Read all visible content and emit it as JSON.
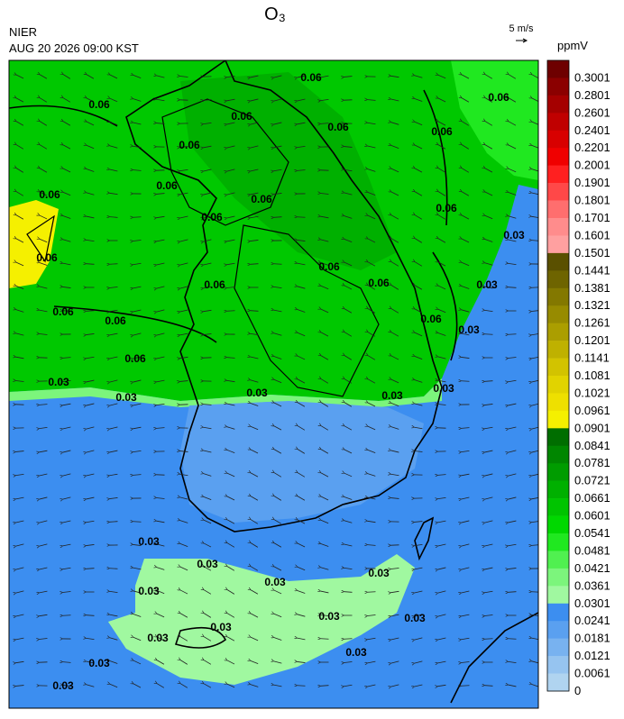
{
  "header": {
    "title": "O₃",
    "organization": "NIER",
    "datetime": "AUG 20 2026 09:00 KST",
    "wind_scale": "5 m/s",
    "unit": "ppmV"
  },
  "legend": [
    {
      "label": "0.3001",
      "color": "#6e0000"
    },
    {
      "label": "0.2801",
      "color": "#8b0000"
    },
    {
      "label": "0.2601",
      "color": "#a50000"
    },
    {
      "label": "0.2401",
      "color": "#c00000"
    },
    {
      "label": "0.2201",
      "color": "#d80000"
    },
    {
      "label": "0.2001",
      "color": "#f00000"
    },
    {
      "label": "0.1901",
      "color": "#ff2020"
    },
    {
      "label": "0.1801",
      "color": "#ff4848"
    },
    {
      "label": "0.1701",
      "color": "#ff6e6e"
    },
    {
      "label": "0.1601",
      "color": "#ff8c8c"
    },
    {
      "label": "0.1501",
      "color": "#ffa0a0"
    },
    {
      "label": "0.1441",
      "color": "#5a5000"
    },
    {
      "label": "0.1381",
      "color": "#6e6400"
    },
    {
      "label": "0.1321",
      "color": "#837800"
    },
    {
      "label": "0.1261",
      "color": "#978b00"
    },
    {
      "label": "0.1201",
      "color": "#ab9e00"
    },
    {
      "label": "0.1141",
      "color": "#bfb100"
    },
    {
      "label": "0.1081",
      "color": "#d2c300"
    },
    {
      "label": "0.1021",
      "color": "#e1d300"
    },
    {
      "label": "0.0961",
      "color": "#eee000"
    },
    {
      "label": "0.0901",
      "color": "#f5f000"
    },
    {
      "label": "0.0841",
      "color": "#006e00"
    },
    {
      "label": "0.0781",
      "color": "#008600"
    },
    {
      "label": "0.0721",
      "color": "#009c00"
    },
    {
      "label": "0.0661",
      "color": "#00b000"
    },
    {
      "label": "0.0601",
      "color": "#00c400"
    },
    {
      "label": "0.0541",
      "color": "#00d800"
    },
    {
      "label": "0.0481",
      "color": "#20e820"
    },
    {
      "label": "0.0421",
      "color": "#50f050"
    },
    {
      "label": "0.0361",
      "color": "#7cf57c"
    },
    {
      "label": "0.0301",
      "color": "#a0f8a0"
    },
    {
      "label": "0.0241",
      "color": "#3c8ef0"
    },
    {
      "label": "0.0181",
      "color": "#5aa0f0"
    },
    {
      "label": "0.0121",
      "color": "#78b2f0"
    },
    {
      "label": "0.0061",
      "color": "#96c4f0"
    },
    {
      "label": "0",
      "color": "#b0d4f0"
    }
  ],
  "contour_labels": [
    "0.06",
    "0.06",
    "0.06",
    "0.06",
    "0.06",
    "0.06",
    "0.06",
    "0.06",
    "0.06",
    "0.06",
    "0.06",
    "0.06",
    "0.06",
    "0.06",
    "0.06",
    "0.06",
    "0.06",
    "0.06",
    "0.06",
    "0.06",
    "0.03",
    "0.03",
    "0.03",
    "0.03",
    "0.03",
    "0.03",
    "0.03",
    "0.03",
    "0.03",
    "0.03",
    "0.03",
    "0.03",
    "0.03",
    "0.03",
    "0.03",
    "0.03",
    "0.03",
    "0.03",
    "0.03",
    "0.03"
  ]
}
